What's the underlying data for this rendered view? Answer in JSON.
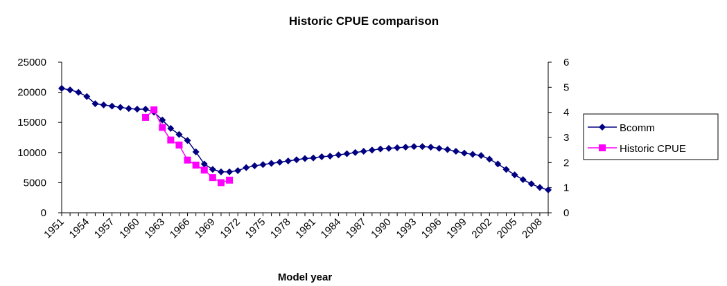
{
  "chart_data": {
    "type": "line",
    "title": "Historic CPUE comparison",
    "xlabel": "Model year",
    "x": [
      1951,
      1952,
      1953,
      1954,
      1955,
      1956,
      1957,
      1958,
      1959,
      1960,
      1961,
      1962,
      1963,
      1964,
      1965,
      1966,
      1967,
      1968,
      1969,
      1970,
      1971,
      1972,
      1973,
      1974,
      1975,
      1976,
      1977,
      1978,
      1979,
      1980,
      1981,
      1982,
      1983,
      1984,
      1985,
      1986,
      1987,
      1988,
      1989,
      1990,
      1991,
      1992,
      1993,
      1994,
      1995,
      1996,
      1997,
      1998,
      1999,
      2000,
      2001,
      2002,
      2003,
      2004,
      2005,
      2006,
      2007,
      2008,
      2009
    ],
    "xlim": [
      1951,
      2009
    ],
    "xticks": [
      1951,
      1954,
      1957,
      1960,
      1963,
      1966,
      1969,
      1972,
      1975,
      1978,
      1981,
      1984,
      1987,
      1990,
      1993,
      1996,
      1999,
      2002,
      2005,
      2008
    ],
    "ylim": [
      0,
      25000
    ],
    "yticks": [
      0,
      5000,
      10000,
      15000,
      20000,
      25000
    ],
    "y2lim": [
      0,
      6
    ],
    "y2ticks": [
      0,
      1,
      2,
      3,
      4,
      5,
      6
    ],
    "legend": "right",
    "series": [
      {
        "name": "Bcomm",
        "color": "#000080",
        "marker": "diamond",
        "values": [
          20650,
          20400,
          20000,
          19300,
          18100,
          17900,
          17700,
          17500,
          17300,
          17200,
          17200,
          16700,
          15400,
          14000,
          13000,
          12000,
          10100,
          8100,
          7200,
          6800,
          6800,
          7000,
          7500,
          7800,
          8000,
          8200,
          8400,
          8600,
          8800,
          9000,
          9100,
          9300,
          9400,
          9600,
          9800,
          10000,
          10200,
          10400,
          10600,
          10700,
          10800,
          10900,
          11000,
          11000,
          10900,
          10700,
          10500,
          10200,
          9900,
          9700,
          9500,
          8900,
          8100,
          7200,
          6300,
          5500,
          4800,
          4200,
          3800
        ]
      },
      {
        "name": "Historic CPUE",
        "color": "#ff00ff",
        "marker": "square",
        "axis": "y2",
        "values": [
          null,
          null,
          null,
          null,
          null,
          null,
          null,
          null,
          null,
          null,
          3.8,
          4.1,
          3.4,
          2.9,
          2.7,
          2.1,
          1.9,
          1.7,
          1.4,
          1.2,
          1.3,
          null,
          null,
          null,
          null,
          null,
          null,
          null,
          null,
          null,
          null,
          null,
          null,
          null,
          null,
          null,
          null,
          null,
          null,
          null,
          null,
          null,
          null,
          null,
          null,
          null,
          null,
          null,
          null,
          null,
          null,
          null,
          null,
          null,
          null,
          null,
          null,
          null,
          null
        ]
      }
    ]
  }
}
